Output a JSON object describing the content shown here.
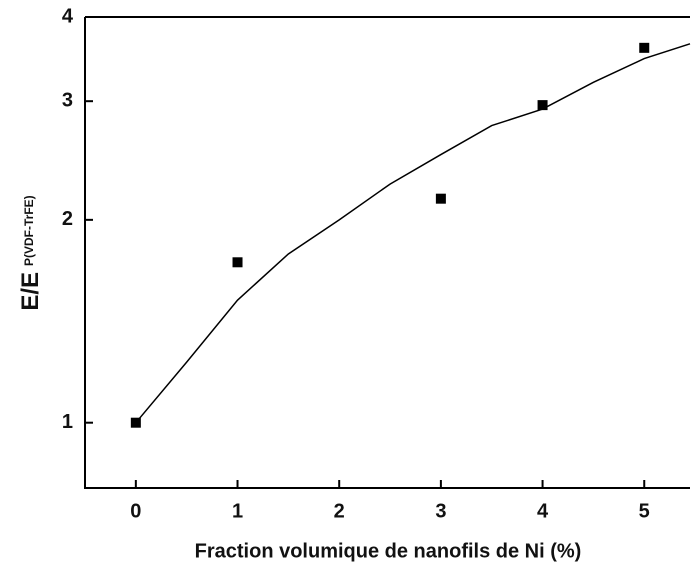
{
  "chart_data": {
    "type": "scatter",
    "xlabel": "Fraction volumique de nanofils de Ni (%)",
    "ylabel": "E/E",
    "ylabel_sub": "P(VDF-TrFE)",
    "x": [
      0,
      1,
      3,
      4,
      5
    ],
    "values": [
      1,
      1.73,
      2.15,
      2.96,
      3.6
    ],
    "color": "#000000",
    "fit": {
      "color": "#000000",
      "x": [
        0,
        0.5,
        1,
        1.5,
        2,
        2.5,
        3,
        3.5,
        4,
        4.5,
        5,
        5.45
      ],
      "values": [
        1,
        1.23,
        1.52,
        1.78,
        2.0,
        2.26,
        2.5,
        2.76,
        2.92,
        3.2,
        3.47,
        3.65
      ]
    },
    "xlim": [
      -0.5,
      5.45
    ],
    "xticks": [
      0,
      1,
      2,
      3,
      4,
      5
    ],
    "ylim": [
      0.8,
      4
    ],
    "yticks": [
      1,
      2,
      3,
      4
    ],
    "ylog": true
  }
}
